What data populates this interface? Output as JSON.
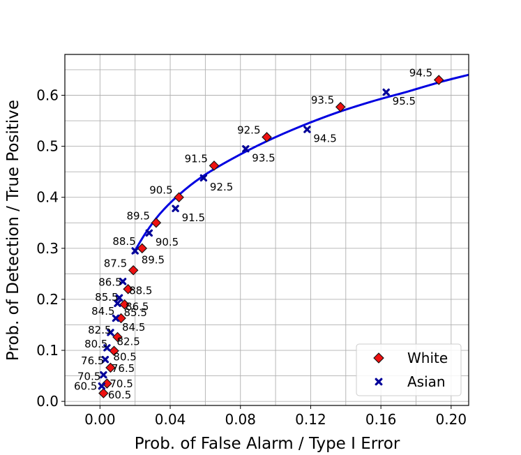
{
  "chart_data": {
    "type": "scatter",
    "xlabel": "Prob. of False Alarm / Type I Error",
    "ylabel": "Prob. of Detection / True Positive",
    "xlim": [
      -0.02,
      0.21
    ],
    "ylim": [
      -0.008,
      0.68
    ],
    "xticks": [
      0.0,
      0.04,
      0.08,
      0.12,
      0.16,
      0.2
    ],
    "xtick_labels": [
      "0.00",
      "0.04",
      "0.08",
      "0.12",
      "0.16",
      "0.20"
    ],
    "xminor": [
      -0.02,
      0.02,
      0.06,
      0.1,
      0.14,
      0.18
    ],
    "yticks": [
      0.0,
      0.1,
      0.2,
      0.3,
      0.4,
      0.5,
      0.6
    ],
    "ytick_labels": [
      "0.0",
      "0.1",
      "0.2",
      "0.3",
      "0.4",
      "0.5",
      "0.6"
    ],
    "yminor": [
      0.05,
      0.15,
      0.25,
      0.35,
      0.45,
      0.55,
      0.65
    ],
    "grid": true,
    "legend_position": "bottom-right",
    "curve": {
      "color": "#0000e0",
      "x": [
        0.019,
        0.026,
        0.034,
        0.045,
        0.058,
        0.075,
        0.095,
        0.115,
        0.135,
        0.155,
        0.175,
        0.195,
        0.21
      ],
      "y": [
        0.29,
        0.33,
        0.367,
        0.405,
        0.44,
        0.475,
        0.51,
        0.54,
        0.566,
        0.588,
        0.607,
        0.627,
        0.64
      ]
    },
    "series": [
      {
        "name": "White",
        "marker": "diamond",
        "color": "#ee1111",
        "points": [
          {
            "x": 0.002,
            "y": 0.016,
            "label": "60.5"
          },
          {
            "x": 0.004,
            "y": 0.035,
            "label": "70.5"
          },
          {
            "x": 0.006,
            "y": 0.066,
            "label": "76.5"
          },
          {
            "x": 0.008,
            "y": 0.099,
            "label": "80.5"
          },
          {
            "x": 0.01,
            "y": 0.126,
            "label": "82.5"
          },
          {
            "x": 0.012,
            "y": 0.163,
            "label": "84.5"
          },
          {
            "x": 0.014,
            "y": 0.19,
            "label": "85.5"
          },
          {
            "x": 0.016,
            "y": 0.22,
            "label": "86.5"
          },
          {
            "x": 0.019,
            "y": 0.257,
            "label": "87.5"
          },
          {
            "x": 0.024,
            "y": 0.3,
            "label": "88.5"
          },
          {
            "x": 0.032,
            "y": 0.35,
            "label": "89.5"
          },
          {
            "x": 0.045,
            "y": 0.4,
            "label": "90.5"
          },
          {
            "x": 0.065,
            "y": 0.462,
            "label": "91.5"
          },
          {
            "x": 0.095,
            "y": 0.518,
            "label": "92.5"
          },
          {
            "x": 0.137,
            "y": 0.577,
            "label": "93.5"
          },
          {
            "x": 0.193,
            "y": 0.63,
            "label": "94.5"
          }
        ]
      },
      {
        "name": "Asian",
        "marker": "x",
        "color": "#000099",
        "points": [
          {
            "x": 0.001,
            "y": 0.03,
            "label": "60.5"
          },
          {
            "x": 0.002,
            "y": 0.052,
            "label": "70.5"
          },
          {
            "x": 0.003,
            "y": 0.082,
            "label": "76.5"
          },
          {
            "x": 0.004,
            "y": 0.105,
            "label": "80.5"
          },
          {
            "x": 0.006,
            "y": 0.135,
            "label": "82.5"
          },
          {
            "x": 0.009,
            "y": 0.163,
            "label": "84.5"
          },
          {
            "x": 0.01,
            "y": 0.192,
            "label": "85.5"
          },
          {
            "x": 0.011,
            "y": 0.203,
            "label": "86.5"
          },
          {
            "x": 0.013,
            "y": 0.235,
            "label": "88.5"
          },
          {
            "x": 0.02,
            "y": 0.295,
            "label": "89.5"
          },
          {
            "x": 0.028,
            "y": 0.33,
            "label": "90.5"
          },
          {
            "x": 0.043,
            "y": 0.378,
            "label": "91.5"
          },
          {
            "x": 0.059,
            "y": 0.438,
            "label": "92.5"
          },
          {
            "x": 0.083,
            "y": 0.495,
            "label": "93.5"
          },
          {
            "x": 0.118,
            "y": 0.533,
            "label": "94.5"
          },
          {
            "x": 0.163,
            "y": 0.606,
            "label": "95.5"
          }
        ]
      }
    ]
  }
}
